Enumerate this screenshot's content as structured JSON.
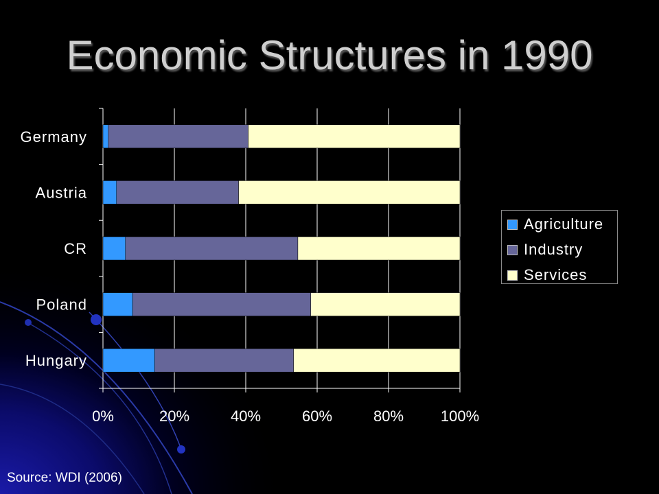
{
  "title": "Economic Structures in 1990",
  "source": "Source: WDI (2006)",
  "chart_data": {
    "type": "bar",
    "orientation": "horizontal",
    "stacking": "percent",
    "title": "",
    "categories": [
      "Germany",
      "Austria",
      "CR",
      "Poland",
      "Hungary"
    ],
    "series": [
      {
        "name": "Agriculture",
        "color": "#3399ff",
        "values": [
          1.5,
          3.8,
          6.3,
          8.3,
          14.5
        ]
      },
      {
        "name": "Industry",
        "color": "#666699",
        "values": [
          39.2,
          34.2,
          48.3,
          49.9,
          38.9
        ]
      },
      {
        "name": "Services",
        "color": "#ffffcc",
        "values": [
          59.3,
          62.0,
          45.4,
          41.8,
          46.6
        ]
      }
    ],
    "x_ticks": [
      "0%",
      "20%",
      "40%",
      "60%",
      "80%",
      "100%"
    ],
    "xlim": [
      0,
      100
    ],
    "grid": true,
    "legend_position": "right"
  },
  "colors": {
    "background": "#000000",
    "title": "#cfcfcf",
    "text": "#ffffff",
    "gridline": "#ffffff"
  }
}
